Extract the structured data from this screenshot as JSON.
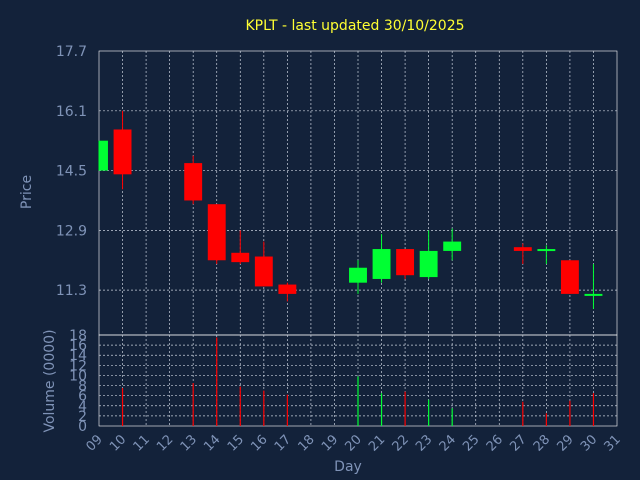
{
  "chart_data": [
    {
      "type": "candlestick",
      "title": "KPLT - last updated 30/10/2025",
      "ylabel": "Price",
      "ylim": [
        10.1,
        17.7
      ],
      "yticks": [
        11.3,
        12.9,
        14.5,
        16.1,
        17.7
      ],
      "grid": true,
      "up_color": "#00ff33",
      "down_color": "#ff0000",
      "candles": [
        {
          "day": 9,
          "open": 14.5,
          "high": 15.3,
          "low": 14.5,
          "close": 15.3
        },
        {
          "day": 10,
          "open": 15.6,
          "high": 16.1,
          "low": 14.0,
          "close": 14.4
        },
        {
          "day": 13,
          "open": 14.7,
          "high": 14.9,
          "low": 13.6,
          "close": 13.7
        },
        {
          "day": 14,
          "open": 13.6,
          "high": 13.6,
          "low": 12.0,
          "close": 12.1
        },
        {
          "day": 15,
          "open": 12.3,
          "high": 12.9,
          "low": 12.0,
          "close": 12.05
        },
        {
          "day": 16,
          "open": 12.2,
          "high": 12.6,
          "low": 11.4,
          "close": 11.4
        },
        {
          "day": 17,
          "open": 11.45,
          "high": 11.5,
          "low": 11.0,
          "close": 11.2
        },
        {
          "day": 20,
          "open": 11.5,
          "high": 12.1,
          "low": 11.2,
          "close": 11.9
        },
        {
          "day": 21,
          "open": 11.6,
          "high": 12.8,
          "low": 11.5,
          "close": 12.4
        },
        {
          "day": 22,
          "open": 12.4,
          "high": 12.4,
          "low": 11.6,
          "close": 11.7
        },
        {
          "day": 23,
          "open": 11.65,
          "high": 12.9,
          "low": 11.6,
          "close": 12.35
        },
        {
          "day": 24,
          "open": 12.35,
          "high": 12.95,
          "low": 12.1,
          "close": 12.6
        },
        {
          "day": 27,
          "open": 12.45,
          "high": 12.55,
          "low": 12.0,
          "close": 12.35
        },
        {
          "day": 28,
          "open": 12.4,
          "high": 12.5,
          "low": 12.0,
          "close": 12.4
        },
        {
          "day": 29,
          "open": 12.1,
          "high": 12.1,
          "low": 11.2,
          "close": 11.2
        },
        {
          "day": 30,
          "open": 11.2,
          "high": 12.0,
          "low": 10.8,
          "close": 11.2
        }
      ]
    },
    {
      "type": "bar",
      "xlabel": "Day",
      "ylabel": "Volume (0000)",
      "ylim": [
        0,
        18
      ],
      "yticks": [
        0,
        2,
        4,
        6,
        8,
        10,
        12,
        14,
        16,
        18
      ],
      "xticks": [
        "09",
        "10",
        "11",
        "12",
        "13",
        "14",
        "15",
        "16",
        "17",
        "18",
        "19",
        "20",
        "21",
        "22",
        "23",
        "24",
        "25",
        "26",
        "27",
        "28",
        "29",
        "30",
        "31"
      ],
      "grid": true,
      "series": [
        {
          "days": [
            10,
            13,
            14,
            15,
            16,
            17,
            20,
            21,
            22,
            23,
            24,
            27,
            28,
            29,
            30
          ],
          "values": [
            7.5,
            8.5,
            17.5,
            7.8,
            7.0,
            6.2,
            9.8,
            6.5,
            6.8,
            5.2,
            3.5,
            4.8,
            2.5,
            5.0,
            6.5
          ],
          "colors": [
            "down",
            "down",
            "down",
            "down",
            "down",
            "down",
            "up",
            "up",
            "down",
            "up",
            "up",
            "down",
            "down",
            "down",
            "down"
          ]
        }
      ]
    }
  ]
}
